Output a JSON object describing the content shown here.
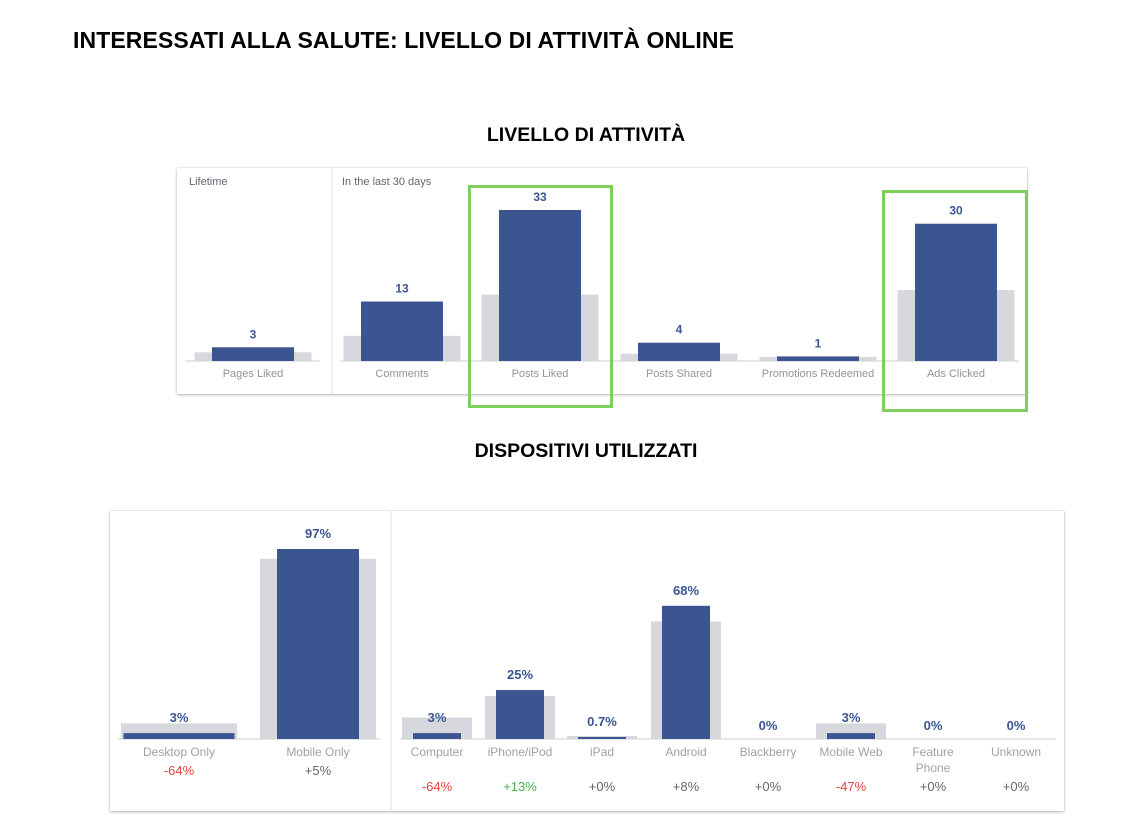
{
  "page": {
    "title": "INTERESSATI ALLA SALUTE: LIVELLO DI ATTIVITÀ ONLINE"
  },
  "activity": {
    "title": "LIVELLO DI ATTIVITÀ",
    "lifetime_label": "Lifetime",
    "recent_label": "In the last 30 days",
    "highlighted": [
      "Posts Liked",
      "Ads Clicked"
    ]
  },
  "devices": {
    "title": "DISPOSITIVI UTILIZZATI"
  },
  "colors": {
    "bar": "#3b5590",
    "background_bar": "#d6d8dd",
    "highlight": "#7dce5a",
    "negative": "#e5413f",
    "positive": "#4caf50",
    "neutral": "#666666"
  },
  "chart_data": [
    {
      "type": "bar",
      "name": "activity",
      "categories": [
        "Pages Liked",
        "Comments",
        "Posts Liked",
        "Posts Shared",
        "Promotions Redeemed",
        "Ads Clicked"
      ],
      "groups": [
        {
          "label": "Lifetime",
          "categories": [
            "Pages Liked"
          ]
        },
        {
          "label": "In the last 30 days",
          "categories": [
            "Comments",
            "Posts Liked",
            "Posts Shared",
            "Promotions Redeemed",
            "Ads Clicked"
          ]
        }
      ],
      "values": [
        3,
        13,
        33,
        4,
        1,
        30
      ],
      "value_labels": [
        "3",
        "13",
        "33",
        "4",
        "1",
        "30"
      ],
      "benchmark_values": [
        1.9,
        5.5,
        14.5,
        1.6,
        0.9,
        15.5
      ]
    },
    {
      "type": "bar",
      "name": "devices",
      "categories": [
        "Desktop Only",
        "Mobile Only",
        "Computer",
        "iPhone/iPod",
        "iPad",
        "Android",
        "Blackberry",
        "Mobile Web",
        "Feature Phone",
        "Unknown"
      ],
      "groups": [
        {
          "categories": [
            "Desktop Only",
            "Mobile Only"
          ]
        },
        {
          "categories": [
            "Computer",
            "iPhone/iPod",
            "iPad",
            "Android",
            "Blackberry",
            "Mobile Web",
            "Feature Phone",
            "Unknown"
          ]
        }
      ],
      "values": [
        3,
        97,
        3,
        25,
        0.7,
        68,
        0,
        3,
        0,
        0
      ],
      "value_labels": [
        "3%",
        "97%",
        "3%",
        "25%",
        "0.7%",
        "68%",
        "0%",
        "3%",
        "0%",
        "0%"
      ],
      "benchmark_values": [
        8,
        92,
        11,
        22,
        0.5,
        60,
        0,
        8,
        0,
        0
      ],
      "changes": [
        "-64%",
        "+5%",
        "-64%",
        "+13%",
        "+0%",
        "+8%",
        "+0%",
        "-47%",
        "+0%",
        "+0%"
      ]
    }
  ]
}
